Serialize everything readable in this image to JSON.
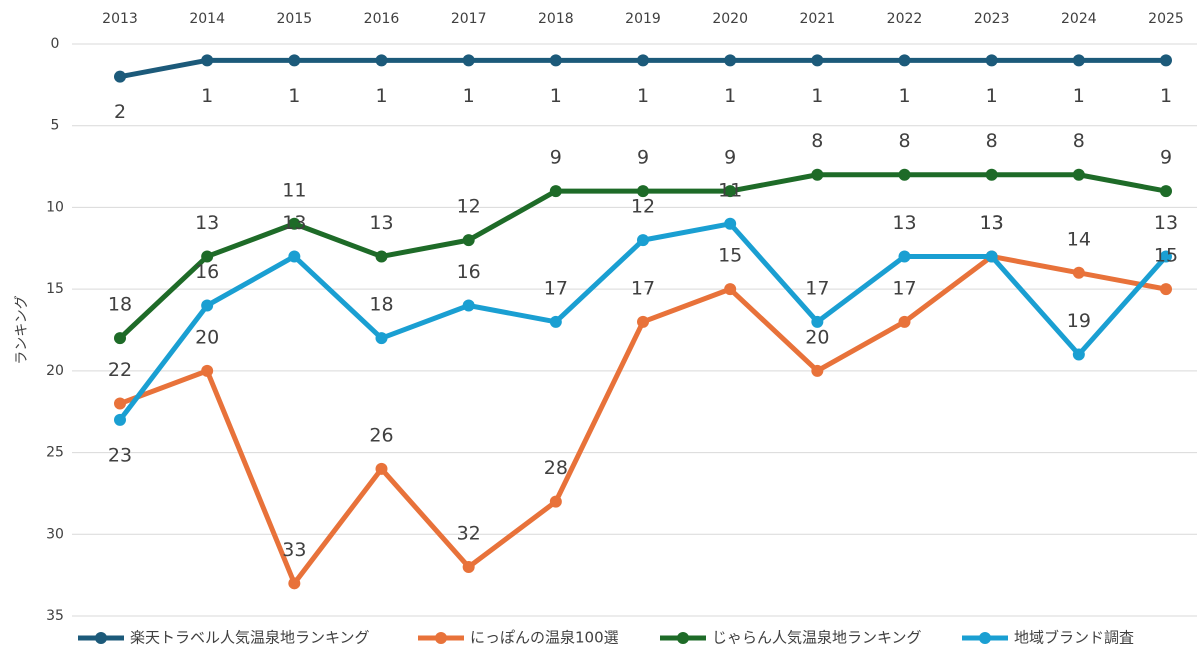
{
  "chart_data": {
    "type": "line",
    "ylabel": "ランキング",
    "categories": [
      "2013",
      "2014",
      "2015",
      "2016",
      "2017",
      "2018",
      "2019",
      "2020",
      "2021",
      "2022",
      "2023",
      "2024",
      "2025"
    ],
    "ylim": [
      0,
      35
    ],
    "yticks": [
      0,
      5,
      10,
      15,
      20,
      25,
      30,
      35
    ],
    "inverted": true,
    "grid": true,
    "legend": "bottom",
    "series": [
      {
        "name": "楽天トラベル人気温泉地ランキング",
        "color": "#1c5a7a",
        "values": [
          2,
          1,
          1,
          1,
          1,
          1,
          1,
          1,
          1,
          1,
          1,
          1,
          1
        ]
      },
      {
        "name": "にっぽんの温泉100選",
        "color": "#e8723a",
        "values": [
          22,
          20,
          33,
          26,
          32,
          28,
          17,
          15,
          20,
          17,
          13,
          14,
          15
        ]
      },
      {
        "name": "じゃらん人気温泉地ランキング",
        "color": "#1e6b28",
        "values": [
          18,
          13,
          11,
          13,
          12,
          9,
          9,
          9,
          8,
          8,
          8,
          8,
          9
        ]
      },
      {
        "name": "地域ブランド調査",
        "color": "#1a9fd2",
        "values": [
          23,
          16,
          13,
          18,
          16,
          17,
          12,
          11,
          17,
          13,
          13,
          19,
          13
        ]
      }
    ]
  }
}
